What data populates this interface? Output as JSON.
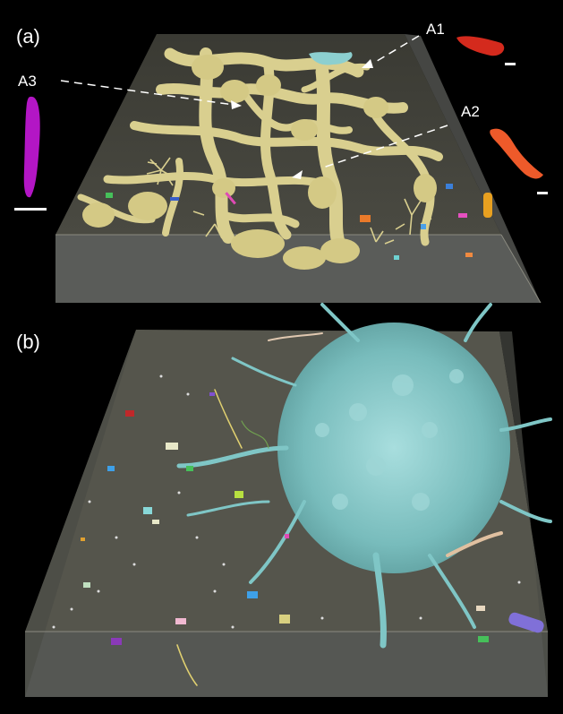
{
  "panels": [
    {
      "label": "(a)"
    },
    {
      "label": "(b)"
    }
  ],
  "callouts": [
    {
      "label": "A1"
    },
    {
      "label": "A2"
    },
    {
      "label": "A3"
    }
  ],
  "colors": {
    "background": "#000000",
    "volume_box": "#6f6e60",
    "neurons": "#d9cf8f",
    "astrocyte": "#7fc6c6",
    "a1": "#d42a1d",
    "a2": "#ee5a2a",
    "a3": "#b316c5"
  }
}
